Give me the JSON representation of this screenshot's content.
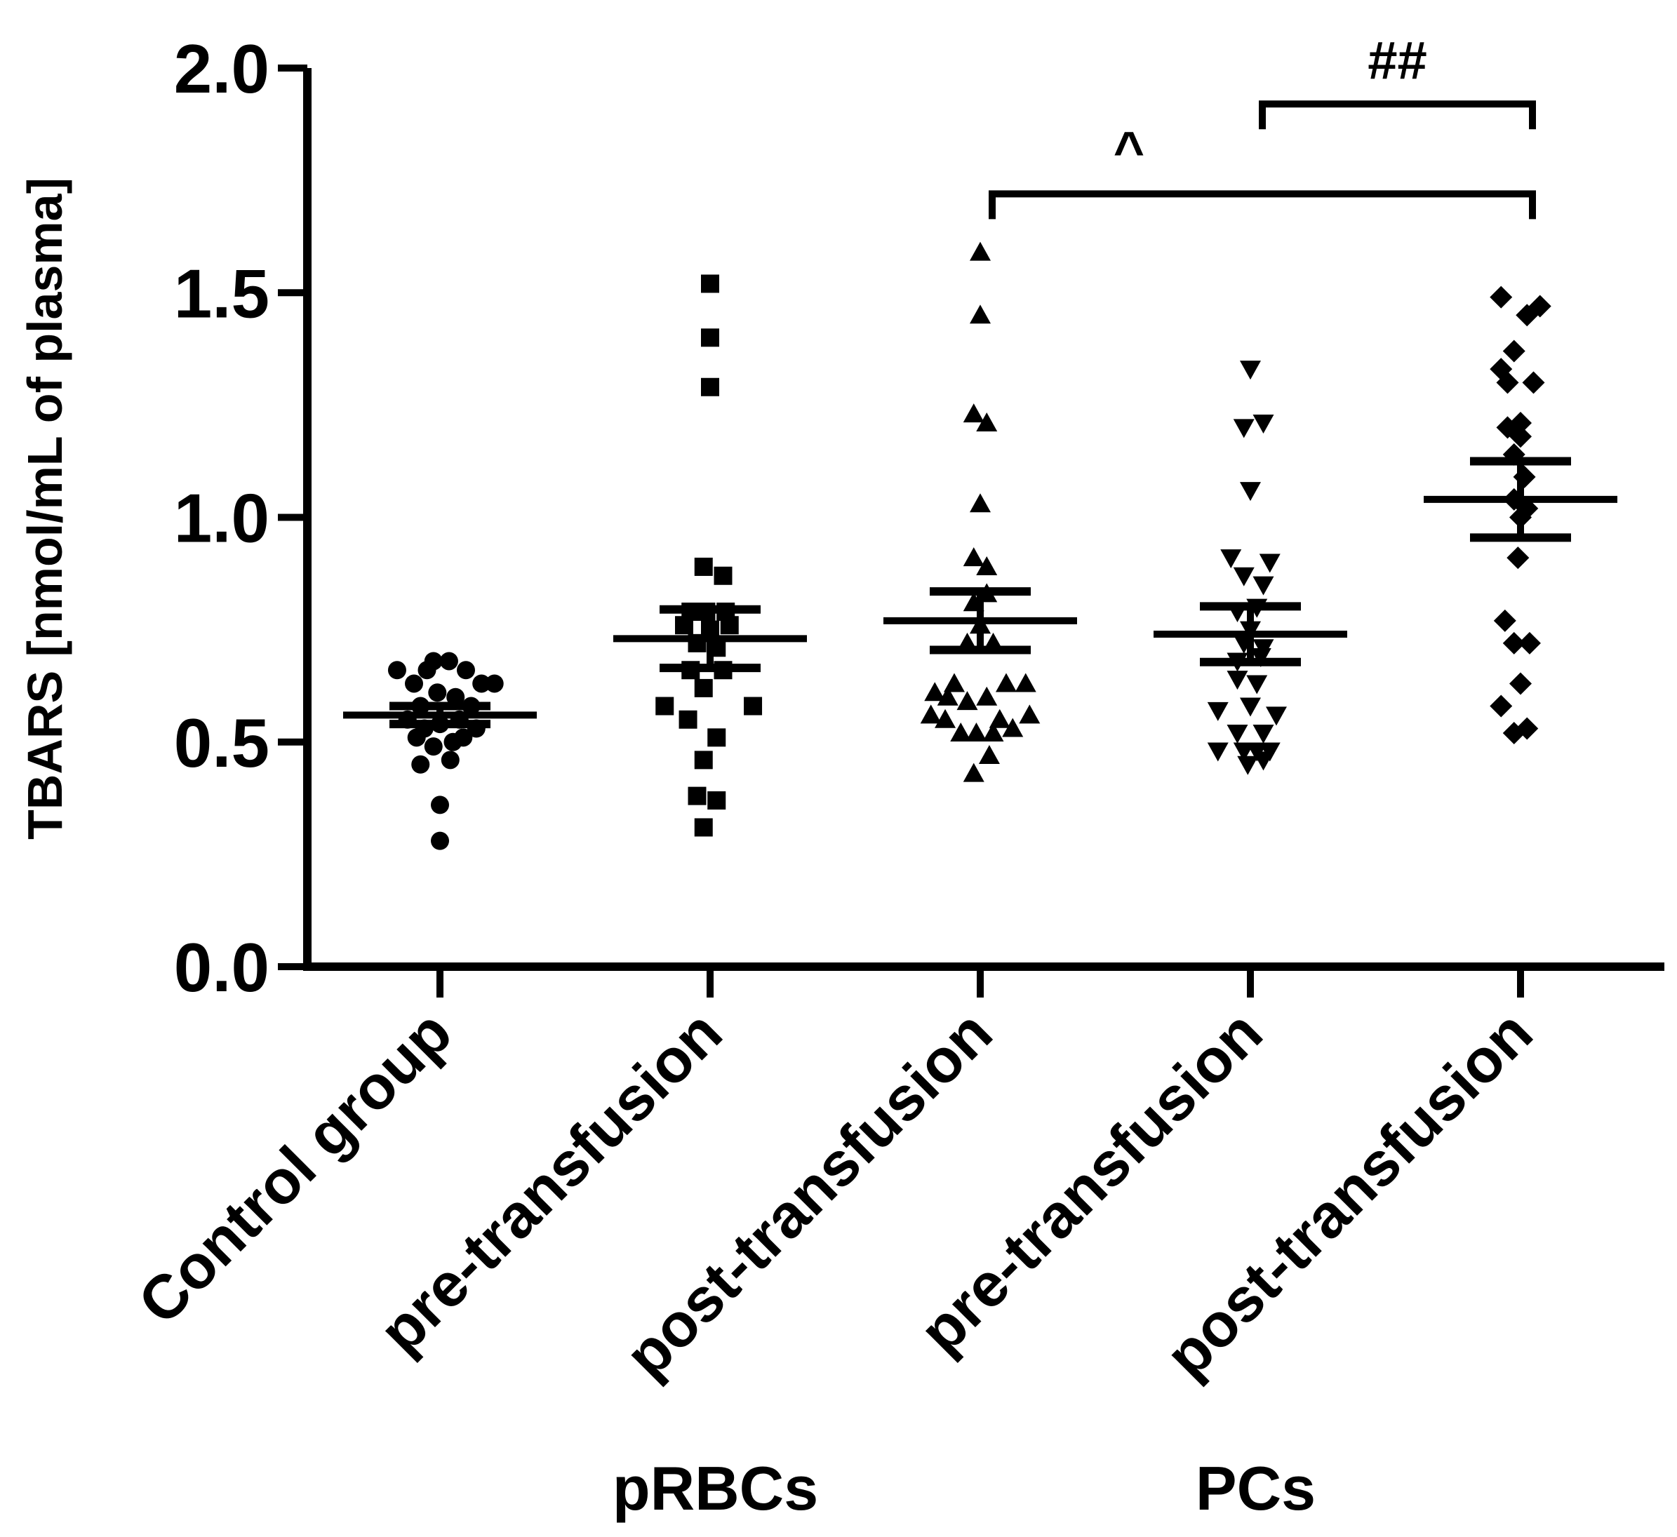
{
  "chart_data": {
    "type": "scatter",
    "ylabel": "TBARS [nmol/mL of plasma]",
    "ylim": [
      0,
      2.0
    ],
    "yticks": [
      0.0,
      0.5,
      1.0,
      1.5,
      2.0
    ],
    "ytick_labels": [
      "0.0",
      "0.5",
      "1.0",
      "1.5",
      "2.0"
    ],
    "categories": [
      "Control group",
      "pre-transfusion",
      "post-transfusion",
      "pre-transfusion",
      "post-transfusion"
    ],
    "group_labels": [
      {
        "label": "pRBCs",
        "under": [
          1,
          2
        ]
      },
      {
        "label": "PCs",
        "under": [
          3,
          4
        ]
      }
    ],
    "series": [
      {
        "name": "Control group",
        "marker": "circle",
        "mean": 0.56,
        "sem": 0.02,
        "points": [
          {
            "dx": -0.33,
            "y": 0.66
          },
          {
            "dx": -0.2,
            "y": 0.63
          },
          {
            "dx": -0.1,
            "y": 0.66
          },
          {
            "dx": -0.05,
            "y": 0.68
          },
          {
            "dx": 0.07,
            "y": 0.68
          },
          {
            "dx": 0.2,
            "y": 0.66
          },
          {
            "dx": 0.32,
            "y": 0.63
          },
          {
            "dx": 0.42,
            "y": 0.63
          },
          {
            "dx": -0.15,
            "y": 0.58
          },
          {
            "dx": -0.02,
            "y": 0.61
          },
          {
            "dx": 0.12,
            "y": 0.6
          },
          {
            "dx": 0.24,
            "y": 0.58
          },
          {
            "dx": -0.25,
            "y": 0.55
          },
          {
            "dx": -0.12,
            "y": 0.53
          },
          {
            "dx": 0.0,
            "y": 0.54
          },
          {
            "dx": 0.15,
            "y": 0.55
          },
          {
            "dx": 0.28,
            "y": 0.53
          },
          {
            "dx": -0.18,
            "y": 0.51
          },
          {
            "dx": 0.18,
            "y": 0.51
          },
          {
            "dx": -0.05,
            "y": 0.49
          },
          {
            "dx": 0.1,
            "y": 0.5
          },
          {
            "dx": -0.15,
            "y": 0.45
          },
          {
            "dx": 0.08,
            "y": 0.46
          },
          {
            "dx": 0.0,
            "y": 0.36
          },
          {
            "dx": 0.0,
            "y": 0.28
          }
        ]
      },
      {
        "name": "pRBCs pre-transfusion",
        "marker": "square",
        "mean": 0.73,
        "sem": 0.065,
        "points": [
          {
            "dx": 0.0,
            "y": 1.52
          },
          {
            "dx": 0.0,
            "y": 1.4
          },
          {
            "dx": 0.0,
            "y": 1.29
          },
          {
            "dx": -0.05,
            "y": 0.89
          },
          {
            "dx": 0.1,
            "y": 0.87
          },
          {
            "dx": -0.15,
            "y": 0.79
          },
          {
            "dx": -0.03,
            "y": 0.79
          },
          {
            "dx": 0.12,
            "y": 0.79
          },
          {
            "dx": -0.2,
            "y": 0.76
          },
          {
            "dx": 0.0,
            "y": 0.75
          },
          {
            "dx": 0.15,
            "y": 0.76
          },
          {
            "dx": -0.1,
            "y": 0.72
          },
          {
            "dx": 0.05,
            "y": 0.71
          },
          {
            "dx": -0.15,
            "y": 0.66
          },
          {
            "dx": 0.1,
            "y": 0.66
          },
          {
            "dx": -0.05,
            "y": 0.62
          },
          {
            "dx": -0.35,
            "y": 0.58
          },
          {
            "dx": 0.33,
            "y": 0.58
          },
          {
            "dx": -0.17,
            "y": 0.55
          },
          {
            "dx": 0.05,
            "y": 0.51
          },
          {
            "dx": -0.05,
            "y": 0.46
          },
          {
            "dx": -0.1,
            "y": 0.38
          },
          {
            "dx": 0.05,
            "y": 0.37
          },
          {
            "dx": -0.05,
            "y": 0.31
          }
        ]
      },
      {
        "name": "pRBCs post-transfusion",
        "marker": "triangle-up",
        "mean": 0.77,
        "sem": 0.065,
        "points": [
          {
            "dx": 0.0,
            "y": 1.59
          },
          {
            "dx": 0.0,
            "y": 1.45
          },
          {
            "dx": -0.05,
            "y": 1.23
          },
          {
            "dx": 0.05,
            "y": 1.21
          },
          {
            "dx": 0.0,
            "y": 1.03
          },
          {
            "dx": -0.05,
            "y": 0.91
          },
          {
            "dx": 0.05,
            "y": 0.89
          },
          {
            "dx": -0.05,
            "y": 0.81
          },
          {
            "dx": 0.05,
            "y": 0.83
          },
          {
            "dx": 0.0,
            "y": 0.76
          },
          {
            "dx": -0.1,
            "y": 0.72
          },
          {
            "dx": 0.1,
            "y": 0.72
          },
          {
            "dx": -0.2,
            "y": 0.63
          },
          {
            "dx": 0.2,
            "y": 0.63
          },
          {
            "dx": -0.35,
            "y": 0.61
          },
          {
            "dx": 0.35,
            "y": 0.63
          },
          {
            "dx": -0.25,
            "y": 0.6
          },
          {
            "dx": -0.1,
            "y": 0.59
          },
          {
            "dx": 0.05,
            "y": 0.6
          },
          {
            "dx": -0.38,
            "y": 0.56
          },
          {
            "dx": 0.38,
            "y": 0.56
          },
          {
            "dx": -0.27,
            "y": 0.55
          },
          {
            "dx": 0.15,
            "y": 0.55
          },
          {
            "dx": -0.15,
            "y": 0.52
          },
          {
            "dx": -0.03,
            "y": 0.52
          },
          {
            "dx": 0.1,
            "y": 0.52
          },
          {
            "dx": 0.25,
            "y": 0.53
          },
          {
            "dx": 0.07,
            "y": 0.47
          },
          {
            "dx": -0.05,
            "y": 0.43
          }
        ]
      },
      {
        "name": "PCs pre-transfusion",
        "marker": "triangle-down",
        "mean": 0.74,
        "sem": 0.062,
        "points": [
          {
            "dx": 0.0,
            "y": 1.33
          },
          {
            "dx": -0.05,
            "y": 1.2
          },
          {
            "dx": 0.1,
            "y": 1.21
          },
          {
            "dx": 0.0,
            "y": 1.06
          },
          {
            "dx": -0.15,
            "y": 0.91
          },
          {
            "dx": 0.15,
            "y": 0.9
          },
          {
            "dx": -0.05,
            "y": 0.87
          },
          {
            "dx": 0.1,
            "y": 0.85
          },
          {
            "dx": -0.1,
            "y": 0.79
          },
          {
            "dx": 0.05,
            "y": 0.8
          },
          {
            "dx": 0.0,
            "y": 0.75
          },
          {
            "dx": -0.05,
            "y": 0.72
          },
          {
            "dx": 0.1,
            "y": 0.71
          },
          {
            "dx": -0.1,
            "y": 0.68
          },
          {
            "dx": 0.08,
            "y": 0.69
          },
          {
            "dx": -0.1,
            "y": 0.64
          },
          {
            "dx": 0.05,
            "y": 0.63
          },
          {
            "dx": -0.25,
            "y": 0.57
          },
          {
            "dx": 0.0,
            "y": 0.58
          },
          {
            "dx": 0.2,
            "y": 0.56
          },
          {
            "dx": -0.1,
            "y": 0.52
          },
          {
            "dx": 0.1,
            "y": 0.52
          },
          {
            "dx": -0.25,
            "y": 0.48
          },
          {
            "dx": -0.05,
            "y": 0.48
          },
          {
            "dx": 0.05,
            "y": 0.48
          },
          {
            "dx": 0.15,
            "y": 0.48
          },
          {
            "dx": -0.02,
            "y": 0.45
          },
          {
            "dx": 0.1,
            "y": 0.46
          }
        ]
      },
      {
        "name": "PCs post-transfusion",
        "marker": "diamond",
        "mean": 1.04,
        "sem": 0.085,
        "points": [
          {
            "dx": -0.15,
            "y": 1.49
          },
          {
            "dx": 0.05,
            "y": 1.45
          },
          {
            "dx": 0.15,
            "y": 1.47
          },
          {
            "dx": -0.05,
            "y": 1.37
          },
          {
            "dx": -0.15,
            "y": 1.33
          },
          {
            "dx": 0.1,
            "y": 1.3
          },
          {
            "dx": -0.1,
            "y": 1.3
          },
          {
            "dx": -0.1,
            "y": 1.2
          },
          {
            "dx": 0.0,
            "y": 1.21
          },
          {
            "dx": 0.0,
            "y": 1.18
          },
          {
            "dx": -0.05,
            "y": 1.14
          },
          {
            "dx": 0.03,
            "y": 1.09
          },
          {
            "dx": -0.05,
            "y": 1.04
          },
          {
            "dx": 0.05,
            "y": 1.02
          },
          {
            "dx": 0.0,
            "y": 1.0
          },
          {
            "dx": -0.02,
            "y": 0.91
          },
          {
            "dx": -0.12,
            "y": 0.77
          },
          {
            "dx": -0.05,
            "y": 0.72
          },
          {
            "dx": 0.07,
            "y": 0.72
          },
          {
            "dx": 0.0,
            "y": 0.63
          },
          {
            "dx": -0.15,
            "y": 0.58
          },
          {
            "dx": 0.05,
            "y": 0.53
          },
          {
            "dx": -0.05,
            "y": 0.52
          }
        ]
      }
    ],
    "annotations": [
      {
        "text": "^",
        "from": 2,
        "to": 4,
        "y": 1.72
      },
      {
        "text": "##",
        "from": 3,
        "to": 4,
        "y": 1.92
      }
    ]
  }
}
